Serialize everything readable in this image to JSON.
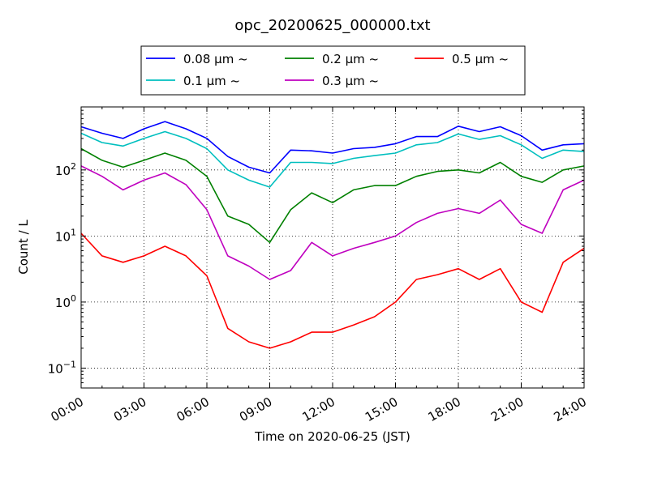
{
  "chart_data": {
    "type": "line",
    "title": "opc_20200625_000000.txt",
    "xlabel": "Time on 2020-06-25 (JST)",
    "ylabel": "Count / L",
    "yscale": "log",
    "xlim": [
      "00:00",
      "24:00"
    ],
    "ylim": [
      0.05,
      900
    ],
    "grid": true,
    "legend_position": "top-center",
    "x_ticks": [
      "00:00",
      "03:00",
      "06:00",
      "09:00",
      "12:00",
      "15:00",
      "18:00",
      "21:00",
      "24:00"
    ],
    "y_ticks": [
      {
        "value": 0.1,
        "base": "10",
        "exp": "−1"
      },
      {
        "value": 1,
        "base": "10",
        "exp": "0"
      },
      {
        "value": 10,
        "base": "10",
        "exp": "1"
      },
      {
        "value": 100,
        "base": "10",
        "exp": "2"
      }
    ],
    "x": [
      "00:00",
      "01:00",
      "02:00",
      "03:00",
      "04:00",
      "05:00",
      "06:00",
      "07:00",
      "08:00",
      "09:00",
      "10:00",
      "11:00",
      "12:00",
      "13:00",
      "14:00",
      "15:00",
      "16:00",
      "17:00",
      "18:00",
      "19:00",
      "20:00",
      "21:00",
      "22:00",
      "23:00",
      "24:00"
    ],
    "series": [
      {
        "name": "0.08 μm ~",
        "color": "#0000ff",
        "values": [
          450,
          360,
          300,
          420,
          540,
          420,
          300,
          160,
          110,
          90,
          200,
          195,
          180,
          210,
          220,
          250,
          320,
          320,
          460,
          380,
          450,
          330,
          200,
          240,
          250
        ]
      },
      {
        "name": "0.1 μm ~",
        "color": "#00bfbf",
        "values": [
          360,
          260,
          230,
          300,
          380,
          300,
          210,
          100,
          70,
          55,
          130,
          130,
          125,
          150,
          165,
          180,
          240,
          260,
          350,
          290,
          330,
          240,
          150,
          200,
          190
        ]
      },
      {
        "name": "0.2 μm ~",
        "color": "#008000",
        "values": [
          210,
          140,
          110,
          140,
          180,
          140,
          80,
          20,
          15,
          8,
          25,
          45,
          32,
          50,
          58,
          58,
          80,
          95,
          100,
          90,
          130,
          80,
          65,
          100,
          115
        ]
      },
      {
        "name": "0.3 μm ~",
        "color": "#bf00bf",
        "values": [
          115,
          80,
          50,
          70,
          90,
          60,
          25,
          5,
          3.5,
          2.2,
          3,
          8,
          5,
          6.5,
          8,
          10,
          16,
          22,
          26,
          22,
          35,
          15,
          11,
          50,
          70
        ]
      },
      {
        "name": "0.5 μm ~",
        "color": "#ff0000",
        "values": [
          11,
          5,
          4,
          5,
          7,
          5,
          2.5,
          0.4,
          0.25,
          0.2,
          0.25,
          0.35,
          0.35,
          0.45,
          0.6,
          1.0,
          2.2,
          2.6,
          3.2,
          2.2,
          3.2,
          1.0,
          0.7,
          4,
          6.5
        ]
      }
    ]
  }
}
